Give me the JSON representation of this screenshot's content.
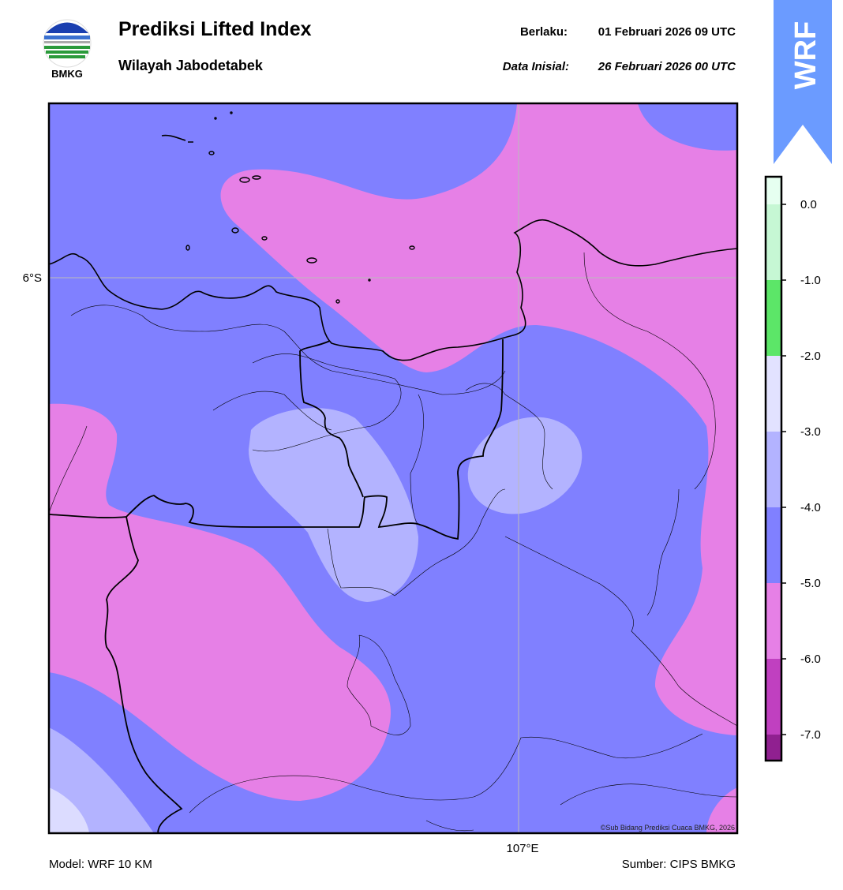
{
  "header": {
    "logo_text": "BMKG",
    "title": "Prediksi Lifted Index",
    "subtitle": "Wilayah Jabodetabek",
    "valid_label": "Berlaku:",
    "valid_time": "01 Februari 2026 09 UTC",
    "init_label": "Data Inisial:",
    "init_time": "26 Februari 2026 00 UTC"
  },
  "banner": {
    "text": "WRF"
  },
  "map": {
    "lat_label": "6°S",
    "lon_label": "107°E",
    "credit": "©Sub Bidang Prediksi Cuaca BMKG, 2026"
  },
  "colorbar": {
    "ticks": [
      "0.0",
      "-1.0",
      "-2.0",
      "-3.0",
      "-4.0",
      "-5.0",
      "-6.0",
      "-7.0"
    ]
  },
  "footer": {
    "model": "Model: WRF 10 KM",
    "source": "Sumber: CIPS BMKG"
  }
}
